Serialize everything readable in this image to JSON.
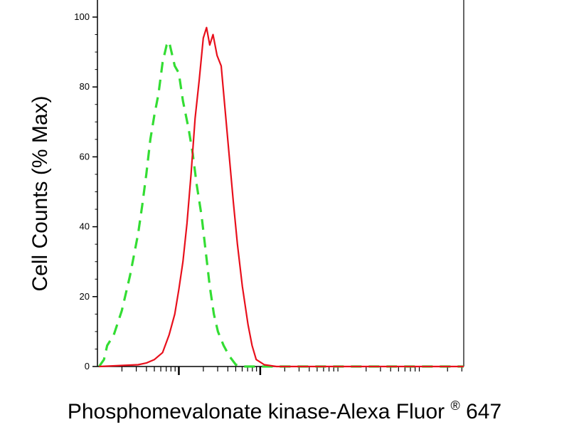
{
  "chart_data": {
    "type": "line",
    "title": "",
    "xlabel": "Phosphomevalonate kinase-Alexa Fluor",
    "xlabel_superscript": "®",
    "xlabel_suffix": " 647",
    "ylabel": "Cell Counts (% Max)",
    "x_scale": "log",
    "xlim": [
      0,
      4.5
    ],
    "ylim": [
      0,
      100
    ],
    "y_ticks": [
      0,
      20,
      40,
      60,
      80,
      100
    ],
    "y_tick_labels": [
      "0",
      "20",
      "40",
      "60",
      "80",
      "100"
    ],
    "x_major_ticks": [
      1,
      2
    ],
    "grid": false,
    "legend": "none",
    "series": [
      {
        "line_style": "dashed",
        "color": "#33dd33",
        "points": [
          [
            0.02,
            0
          ],
          [
            0.08,
            2
          ],
          [
            0.12,
            6
          ],
          [
            0.2,
            9
          ],
          [
            0.3,
            16
          ],
          [
            0.4,
            26
          ],
          [
            0.5,
            38
          ],
          [
            0.55,
            46
          ],
          [
            0.6,
            55
          ],
          [
            0.65,
            65
          ],
          [
            0.7,
            72
          ],
          [
            0.75,
            78
          ],
          [
            0.8,
            87
          ],
          [
            0.85,
            92
          ],
          [
            0.88,
            93
          ],
          [
            0.9,
            91
          ],
          [
            0.95,
            86
          ],
          [
            1.0,
            84
          ],
          [
            1.05,
            76
          ],
          [
            1.12,
            68
          ],
          [
            1.17,
            61
          ],
          [
            1.22,
            52
          ],
          [
            1.28,
            43
          ],
          [
            1.33,
            33
          ],
          [
            1.38,
            23
          ],
          [
            1.43,
            15
          ],
          [
            1.48,
            10
          ],
          [
            1.55,
            6
          ],
          [
            1.62,
            3
          ],
          [
            1.7,
            0.5
          ],
          [
            1.8,
            0
          ],
          [
            4.5,
            0
          ]
        ]
      },
      {
        "line_style": "solid",
        "color": "#e8101c",
        "points": [
          [
            0.02,
            0
          ],
          [
            0.5,
            0.5
          ],
          [
            0.6,
            1
          ],
          [
            0.7,
            2
          ],
          [
            0.8,
            4
          ],
          [
            0.88,
            9
          ],
          [
            0.95,
            15
          ],
          [
            1.0,
            22
          ],
          [
            1.05,
            30
          ],
          [
            1.1,
            41
          ],
          [
            1.15,
            55
          ],
          [
            1.2,
            71
          ],
          [
            1.25,
            82
          ],
          [
            1.3,
            94
          ],
          [
            1.34,
            97
          ],
          [
            1.38,
            92
          ],
          [
            1.42,
            95
          ],
          [
            1.47,
            89
          ],
          [
            1.52,
            86
          ],
          [
            1.57,
            73
          ],
          [
            1.62,
            60
          ],
          [
            1.67,
            47
          ],
          [
            1.72,
            35
          ],
          [
            1.78,
            23
          ],
          [
            1.85,
            12
          ],
          [
            1.9,
            6
          ],
          [
            1.95,
            2
          ],
          [
            2.05,
            0.5
          ],
          [
            2.2,
            0
          ],
          [
            4.5,
            0
          ]
        ]
      }
    ]
  }
}
